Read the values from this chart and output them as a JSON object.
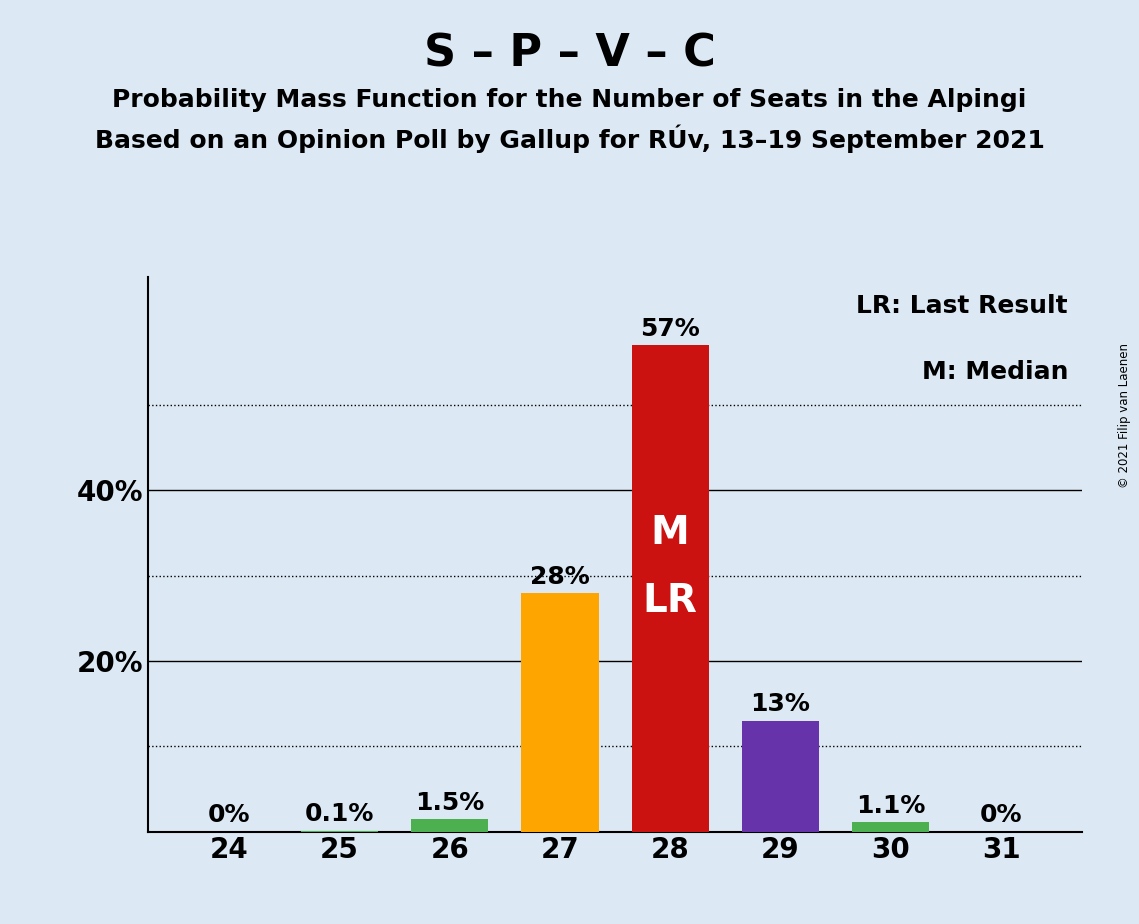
{
  "title": "S – P – V – C",
  "subtitle1": "Probability Mass Function for the Number of Seats in the Alpingi",
  "subtitle2": "Based on an Opinion Poll by Gallup for RÚv, 13–19 September 2021",
  "copyright": "© 2021 Filip van Laenen",
  "categories": [
    24,
    25,
    26,
    27,
    28,
    29,
    30,
    31
  ],
  "values": [
    0.0,
    0.1,
    1.5,
    28.0,
    57.0,
    13.0,
    1.1,
    0.0
  ],
  "bar_colors": [
    "#4caf50",
    "#4caf50",
    "#4caf50",
    "#ffa500",
    "#cc1111",
    "#6633aa",
    "#4caf50",
    "#4caf50"
  ],
  "background_color": "#dce9f5",
  "bar_labels": [
    "0%",
    "0.1%",
    "1.5%",
    "28%",
    "57%",
    "13%",
    "1.1%",
    "0%"
  ],
  "median_bar_index": 4,
  "lr_bar_index": 4,
  "median_label": "M",
  "lr_label": "LR",
  "legend_lr": "LR: Last Result",
  "legend_m": "M: Median",
  "solid_grid": [
    20,
    40
  ],
  "dotted_grid": [
    10,
    30,
    50
  ],
  "ylim": [
    0,
    65
  ],
  "bar_label_fontsize": 18,
  "title_fontsize": 32,
  "subtitle_fontsize": 18,
  "axis_label_fontsize": 20,
  "legend_fontsize": 18,
  "ml_fontsize": 28
}
